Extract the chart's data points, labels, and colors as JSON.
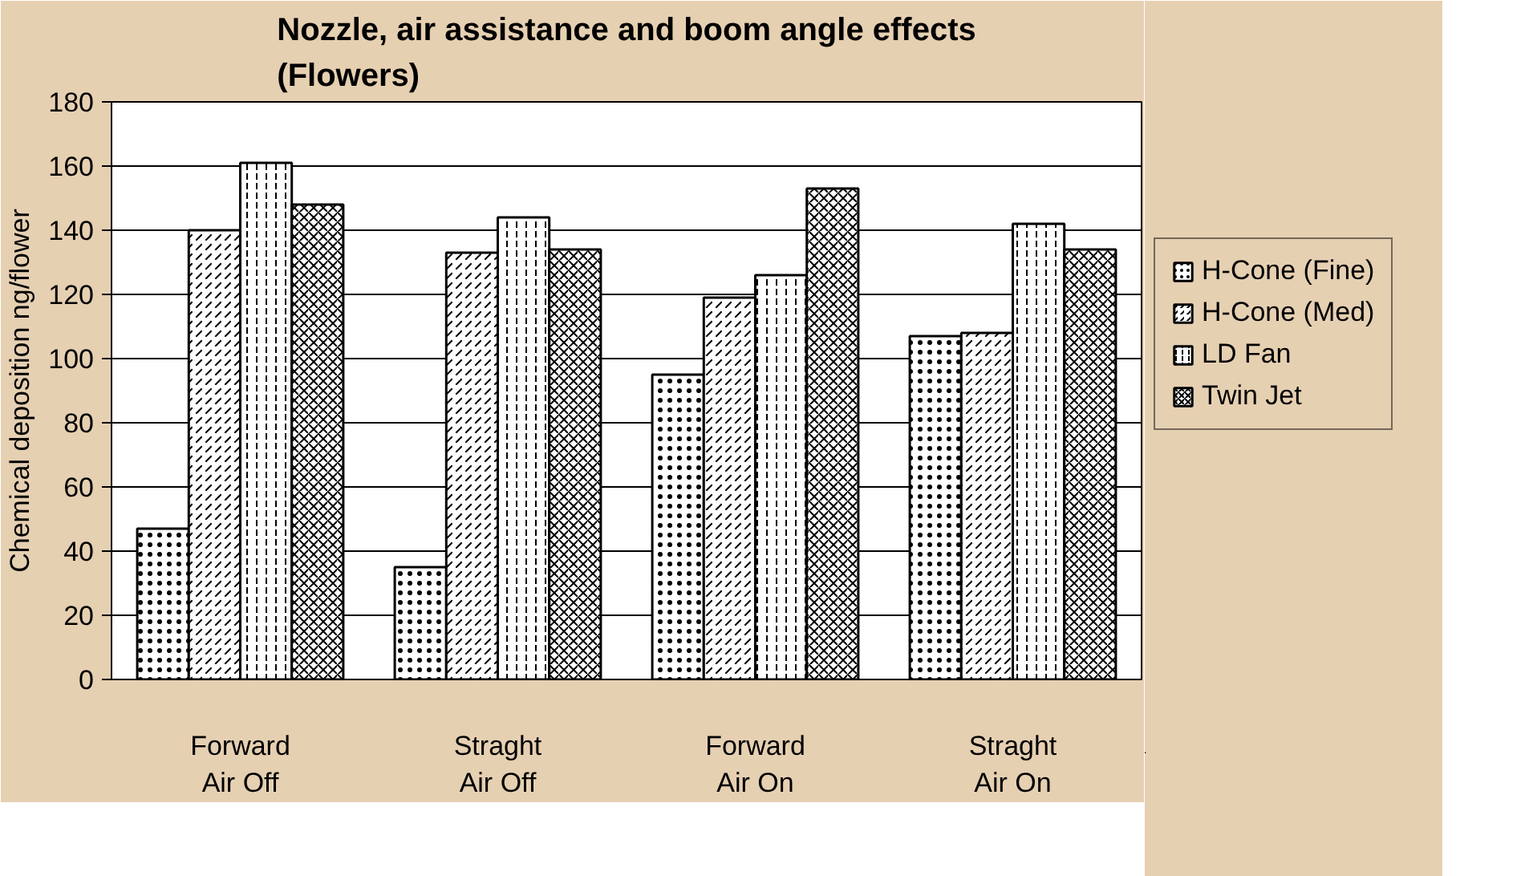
{
  "chart_data": {
    "type": "bar",
    "title": "Nozzle, air assistance and boom angle effects\n(Flowers)",
    "ylabel": "Chemical deposition ng/flower",
    "categories": [
      "Forward\nAir Off",
      "Straght\nAir Off",
      "Forward\nAir On",
      "Straght\nAir On"
    ],
    "series": [
      {
        "name": "H-Cone (Fine)",
        "color": "#ffffff",
        "values": [
          47,
          35,
          95,
          107
        ]
      },
      {
        "name": "H-Cone (Med)",
        "color": "#ffffff",
        "values": [
          140,
          133,
          119,
          108
        ]
      },
      {
        "name": "LD Fan",
        "color": "#ffffff",
        "values": [
          161,
          144,
          126,
          142
        ]
      },
      {
        "name": "Twin Jet",
        "color": "#ffffff",
        "values": [
          148,
          134,
          153,
          134
        ]
      }
    ],
    "ylim": [
      0,
      180
    ],
    "yticks": [
      0,
      20,
      40,
      60,
      80,
      100,
      120,
      140,
      160,
      180
    ],
    "grid": "y",
    "legend": "right"
  }
}
